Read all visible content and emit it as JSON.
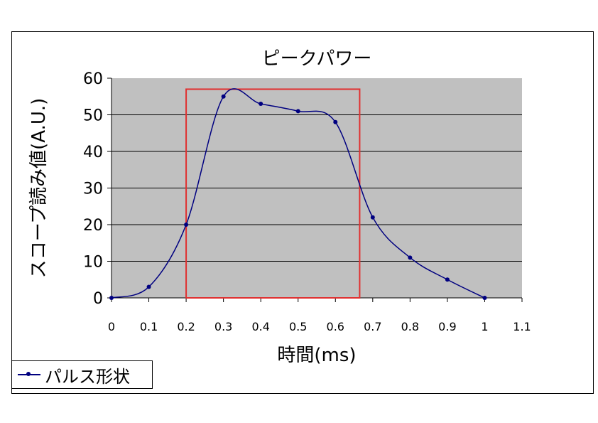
{
  "chart_data": {
    "type": "line",
    "title": "ピークパワー",
    "xlabel": "時間(ms)",
    "ylabel": "スコープ読み値(A.U.)",
    "xlim": [
      0,
      1.1
    ],
    "ylim": [
      0,
      60
    ],
    "xticks": [
      "0",
      "0.1",
      "0.2",
      "0.3",
      "0.4",
      "0.5",
      "0.6",
      "0.7",
      "0.8",
      "0.9",
      "1",
      "1.1"
    ],
    "yticks": [
      "0",
      "10",
      "20",
      "30",
      "40",
      "50",
      "60"
    ],
    "grid": true,
    "legend_position": "bottom-left",
    "series": [
      {
        "name": "パルス形状",
        "x": [
          0,
          0.1,
          0.2,
          0.3,
          0.4,
          0.5,
          0.6,
          0.7,
          0.8,
          0.9,
          1.0
        ],
        "y": [
          0,
          3,
          20,
          55,
          53,
          51,
          48,
          22,
          11,
          5,
          0
        ]
      }
    ],
    "highlight_box": {
      "x_range": [
        0.2,
        0.665
      ],
      "y_range": [
        0,
        57
      ]
    },
    "colors": {
      "plot_background": "#c0c0c0",
      "series": "#000080",
      "highlight": "#e03030",
      "grid": "#000000"
    }
  }
}
